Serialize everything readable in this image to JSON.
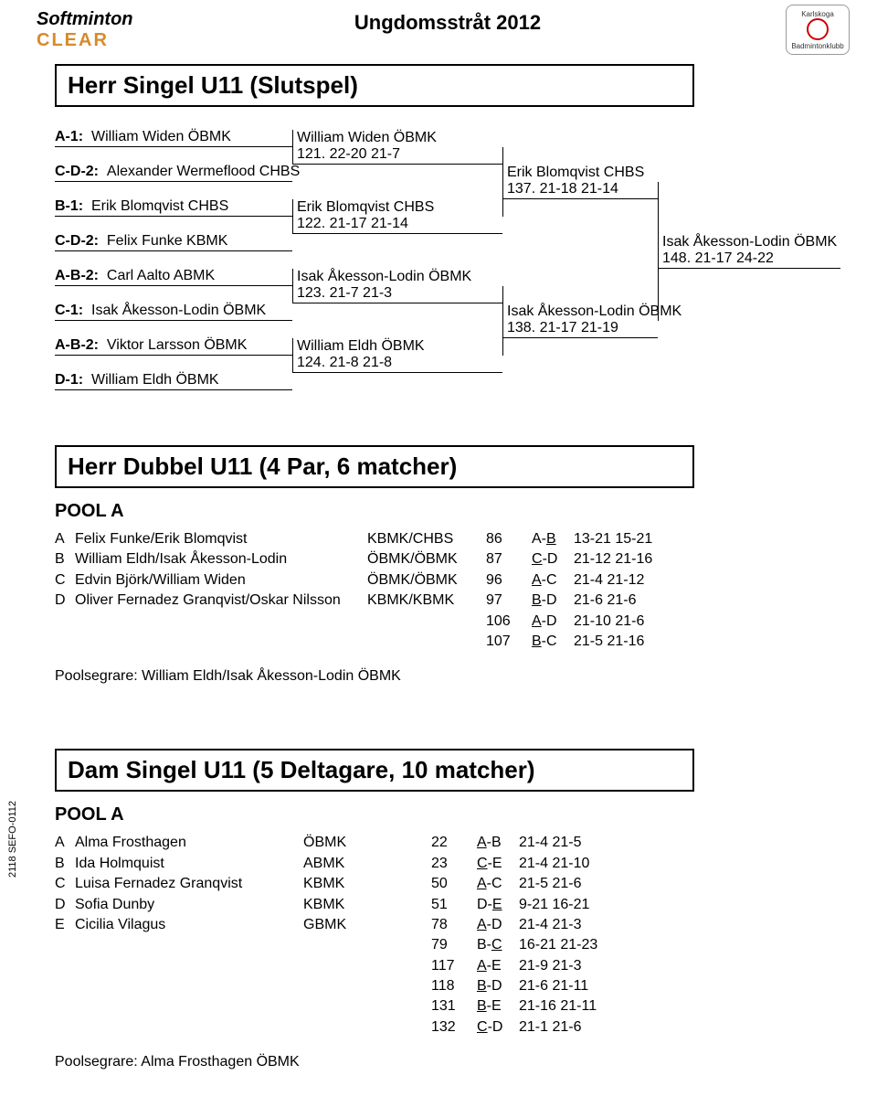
{
  "header": {
    "left_logo_top": "Softminton",
    "left_logo_bottom": "CLEAR",
    "title": "Ungdomsstråt 2012",
    "right_logo_top": "Karlskoga",
    "right_logo_bottom": "Badmintonklubb"
  },
  "sidecode": "2118 SEFO-0112",
  "section1": {
    "title": "Herr Singel U11    (Slutspel)",
    "rows": [
      {
        "seed": "A-1:",
        "name": "William Widen ÖBMK"
      },
      {
        "seed": "C-D-2:",
        "name": "Alexander Wermeflood CHBS"
      },
      {
        "seed": "B-1:",
        "name": "Erik Blomqvist CHBS"
      },
      {
        "seed": "C-D-2:",
        "name": "Felix Funke KBMK"
      },
      {
        "seed": "A-B-2:",
        "name": "Carl Aalto ABMK"
      },
      {
        "seed": "C-1:",
        "name": "Isak Åkesson-Lodin ÖBMK"
      },
      {
        "seed": "A-B-2:",
        "name": "Viktor Larsson ÖBMK"
      },
      {
        "seed": "D-1:",
        "name": "William Eldh ÖBMK"
      }
    ],
    "r2": [
      {
        "name": "William Widen ÖBMK",
        "score": "121. 22-20 21-7"
      },
      {
        "name": "Erik Blomqvist CHBS",
        "score": "122. 21-17 21-14"
      },
      {
        "name": "Isak Åkesson-Lodin ÖBMK",
        "score": "123. 21-7  21-3"
      },
      {
        "name": "William Eldh ÖBMK",
        "score": "124. 21-8  21-8"
      }
    ],
    "r3": [
      {
        "name": "Erik Blomqvist CHBS",
        "score": "137. 21-18 21-14"
      },
      {
        "name": "Isak Åkesson-Lodin ÖBMK",
        "score": "138. 21-17 21-19"
      }
    ],
    "r4": {
      "name": "Isak Åkesson-Lodin ÖBMK",
      "score": "148. 21-17 24-22"
    }
  },
  "section2": {
    "title": "Herr Dubbel U11   (4 Par,  6 matcher)",
    "pool": "POOL A",
    "rows": [
      {
        "l": "A",
        "name": "Felix Funke/Erik Blomqvist",
        "club": "KBMK/CHBS",
        "n": "86",
        "m": "A-B",
        "mu": "B",
        "s": "13-21 15-21"
      },
      {
        "l": "B",
        "name": "William Eldh/Isak Åkesson-Lodin",
        "club": "ÖBMK/ÖBMK",
        "n": "87",
        "m": "C-D",
        "mu": "C",
        "s": "21-12 21-16"
      },
      {
        "l": "C",
        "name": "Edvin Björk/William Widen",
        "club": "ÖBMK/ÖBMK",
        "n": "96",
        "m": "A-C",
        "mu": "A",
        "s": "21-4  21-12"
      },
      {
        "l": "D",
        "name": "Oliver Fernadez Granqvist/Oskar Nilsson",
        "club": "KBMK/KBMK",
        "n": "97",
        "m": "B-D",
        "mu": "B",
        "s": "21-6  21-6"
      },
      {
        "l": "",
        "name": "",
        "club": "",
        "n": "106",
        "m": "A-D",
        "mu": "A",
        "s": "21-10 21-6"
      },
      {
        "l": "",
        "name": "",
        "club": "",
        "n": "107",
        "m": "B-C",
        "mu": "B",
        "s": "21-5  21-16"
      }
    ],
    "winner_label": "Poolsegrare:",
    "winner": "William Eldh/Isak Åkesson-Lodin  ÖBMK"
  },
  "section3": {
    "title": "Dam Singel U11   (5 Deltagare,  10 matcher)",
    "pool": "POOL A",
    "rows": [
      {
        "l": "A",
        "name": "Alma Frosthagen",
        "club": "ÖBMK",
        "n": "22",
        "m": "A-B",
        "mu": "A",
        "s": "21-4  21-5"
      },
      {
        "l": "B",
        "name": "Ida Holmquist",
        "club": "ABMK",
        "n": "23",
        "m": "C-E",
        "mu": "C",
        "s": "21-4  21-10"
      },
      {
        "l": "C",
        "name": "Luisa Fernadez Granqvist",
        "club": "KBMK",
        "n": "50",
        "m": "A-C",
        "mu": "A",
        "s": "21-5  21-6"
      },
      {
        "l": "D",
        "name": "Sofia Dunby",
        "club": "KBMK",
        "n": "51",
        "m": "D-E",
        "mu": "E",
        "s": "9-21  16-21"
      },
      {
        "l": "E",
        "name": "Cicilia Vilagus",
        "club": "GBMK",
        "n": "78",
        "m": "A-D",
        "mu": "A",
        "s": "21-4  21-3"
      },
      {
        "l": "",
        "name": "",
        "club": "",
        "n": "79",
        "m": "B-C",
        "mu": "C",
        "s": "16-21 21-23"
      },
      {
        "l": "",
        "name": "",
        "club": "",
        "n": "117",
        "m": "A-E",
        "mu": "A",
        "s": "21-9  21-3"
      },
      {
        "l": "",
        "name": "",
        "club": "",
        "n": "118",
        "m": "B-D",
        "mu": "B",
        "s": "21-6  21-11"
      },
      {
        "l": "",
        "name": "",
        "club": "",
        "n": "131",
        "m": "B-E",
        "mu": "B",
        "s": "21-16 21-11"
      },
      {
        "l": "",
        "name": "",
        "club": "",
        "n": "132",
        "m": "C-D",
        "mu": "C",
        "s": "21-1  21-6"
      }
    ],
    "winner_label": "Poolsegrare:",
    "winner": "Alma Frosthagen  ÖBMK"
  }
}
